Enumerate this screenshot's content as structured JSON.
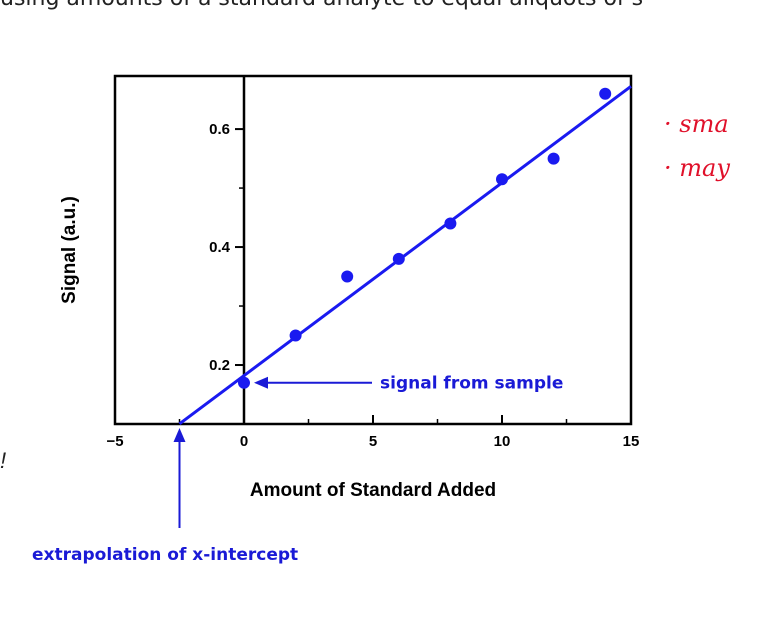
{
  "header": {
    "cropped_text": "using amounts of a standard analyte to equal aliquots of s"
  },
  "side_mark": "!",
  "handwriting": [
    "· sma",
    "· may"
  ],
  "colors": {
    "data": "#1a1af0",
    "annotation": "#1a1ad6",
    "ink": "#e0102a",
    "axis": "#000000"
  },
  "chart_data": {
    "type": "scatter",
    "xlabel": "Amount of Standard Added",
    "ylabel": "Signal (a.u.)",
    "xlim": [
      -5,
      15
    ],
    "ylim": [
      0.1,
      0.69
    ],
    "x_ticks": [
      -5,
      0,
      5,
      10,
      15
    ],
    "y_ticks": [
      0.2,
      0.4,
      0.6
    ],
    "y_tick_labels": [
      "0.2",
      "0.4",
      "0.6"
    ],
    "series": [
      {
        "points": [
          {
            "x": 0,
            "y": 0.17
          },
          {
            "x": 2,
            "y": 0.25
          },
          {
            "x": 4,
            "y": 0.35
          },
          {
            "x": 6,
            "y": 0.38
          },
          {
            "x": 8,
            "y": 0.44
          },
          {
            "x": 10,
            "y": 0.515
          },
          {
            "x": 12,
            "y": 0.55
          },
          {
            "x": 14,
            "y": 0.66
          }
        ]
      }
    ],
    "fit_line": {
      "x_start": -2.5,
      "x_end": 15,
      "slope": 0.0327,
      "intercept": 0.182
    },
    "annotations": [
      {
        "text": "signal from sample",
        "points_to": {
          "x": 0,
          "y": 0.17
        }
      },
      {
        "text": "extrapolation of x-intercept",
        "points_to": {
          "x": -2.5,
          "y": 0.1
        }
      }
    ],
    "grid": false
  }
}
